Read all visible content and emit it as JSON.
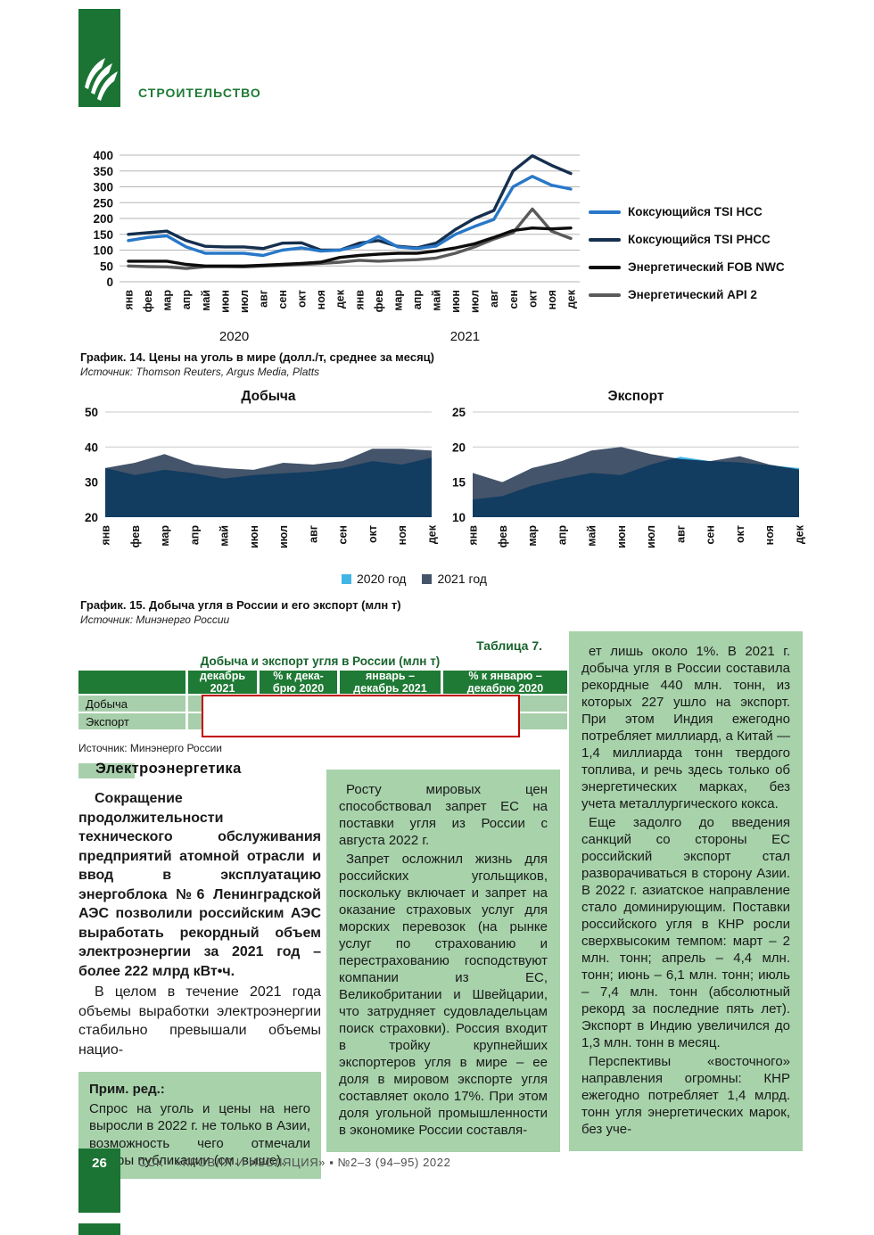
{
  "header": {
    "section_label": "СТРОИТЕЛЬСТВО"
  },
  "colors": {
    "brand_green": "#1B7434",
    "header_green": "#1E7A34",
    "light_green": "#A7D2AA",
    "redaction_red": "#C00000",
    "legend_2020_blue": "#41B6E6",
    "legend_2021_slate": "#44546A"
  },
  "chart14": {
    "caption": "График. 14. Цены на уголь в мире (долл./т, среднее за месяц)",
    "source": "Источник: Thomson Reuters, Argus Media, Platts"
  },
  "chart15": {
    "caption": "График. 15. Добыча угля в России и его экспорт (млн т)",
    "source": "Источник: Минэнерго России"
  },
  "chart_data": [
    {
      "id": "world-coal-prices",
      "type": "line",
      "title": "Цены на уголь в мире (долл./т, среднее за месяц)",
      "x_months": [
        "янв",
        "фев",
        "мар",
        "апр",
        "май",
        "июн",
        "июл",
        "авг",
        "сен",
        "окт",
        "ноя",
        "дек",
        "янв",
        "фев",
        "мар",
        "апр",
        "май",
        "июн",
        "июл",
        "авг",
        "сен",
        "окт",
        "ноя",
        "дек"
      ],
      "year_groups": [
        "2020",
        "2021"
      ],
      "ylim": [
        0,
        400
      ],
      "ytick_step": 50,
      "grid": true,
      "legend_position": "right",
      "series": [
        {
          "name": "Коксующийся TSI HCC",
          "color": "#2878C8",
          "values": [
            130,
            140,
            145,
            110,
            90,
            90,
            90,
            83,
            100,
            107,
            97,
            100,
            113,
            143,
            110,
            105,
            113,
            150,
            175,
            197,
            300,
            333,
            305,
            293
          ]
        },
        {
          "name": "Коксующийся TSI PHCC",
          "color": "#152F4E",
          "values": [
            150,
            155,
            160,
            130,
            112,
            110,
            110,
            105,
            122,
            123,
            100,
            100,
            122,
            130,
            112,
            107,
            122,
            165,
            200,
            225,
            350,
            398,
            368,
            342
          ]
        },
        {
          "name": "Энергетический FOB NWC",
          "color": "#0d0d0d",
          "values": [
            65,
            65,
            65,
            55,
            50,
            50,
            50,
            52,
            55,
            58,
            62,
            77,
            83,
            87,
            90,
            90,
            97,
            107,
            120,
            140,
            162,
            170,
            167,
            170
          ]
        },
        {
          "name": "Энергетический API 2",
          "color": "#5a5a5a",
          "values": [
            50,
            48,
            47,
            42,
            48,
            48,
            47,
            50,
            52,
            55,
            58,
            62,
            68,
            65,
            68,
            70,
            75,
            90,
            110,
            135,
            155,
            230,
            160,
            137
          ]
        }
      ]
    },
    {
      "id": "russia-coal-production",
      "type": "area",
      "title": "Добыча",
      "months": [
        "янв",
        "фев",
        "мар",
        "апр",
        "май",
        "июн",
        "июл",
        "авг",
        "сен",
        "окт",
        "ноя",
        "дек"
      ],
      "ylim": [
        20,
        50
      ],
      "yticks": [
        20,
        30,
        40,
        50
      ],
      "series": [
        {
          "name": "2020 год",
          "color": "#41B6E6",
          "values": [
            34,
            32,
            33.5,
            32.5,
            31,
            32,
            32.5,
            33,
            34,
            36,
            35,
            37
          ]
        },
        {
          "name": "2021 год",
          "color": "#44546A",
          "values": [
            34,
            35.5,
            38,
            35,
            34,
            33.5,
            35.5,
            35,
            36,
            39.5,
            39.5,
            39
          ]
        }
      ]
    },
    {
      "id": "russia-coal-export",
      "type": "area",
      "title": "Экспорт",
      "months": [
        "янв",
        "фев",
        "мар",
        "апр",
        "май",
        "июн",
        "июл",
        "авг",
        "сен",
        "окт",
        "ноя",
        "дек"
      ],
      "ylim": [
        10,
        25
      ],
      "yticks": [
        10,
        15,
        20,
        25
      ],
      "series": [
        {
          "name": "2020 год",
          "color": "#41B6E6",
          "values": [
            12.5,
            13,
            14.5,
            15.5,
            16.3,
            16,
            17.5,
            18.6,
            18,
            17.8,
            17.4,
            17
          ]
        },
        {
          "name": "2021 год",
          "color": "#44546A",
          "values": [
            16.3,
            15,
            17,
            18,
            19.5,
            20,
            19,
            18.3,
            18,
            18.7,
            17.5,
            16.8
          ]
        }
      ]
    }
  ],
  "table7": {
    "label": "Таблица 7.",
    "title": "Добыча и экспорт угля в России (млн т)",
    "columns": [
      "",
      "декабрь 2021",
      "% к дека-брю 2020",
      "январь – декабрь 2021",
      "% к январю – декабрю 2020"
    ],
    "rows": [
      {
        "label": "Добыча"
      },
      {
        "label": "Экспорт"
      }
    ],
    "source": "Источник: Минэнерго России"
  },
  "left_column": {
    "section_title": "Электроэнергетика",
    "p1": "Сокращение продолжительности технического обслуживания предприятий атомной отрасли и ввод в эксплуатацию энергоблока №6 Ленинградской АЭС позволили российским АЭС выработать рекордный объем электроэнергии за 2021 год – более 222 млрд кВт•ч.",
    "p2": "В целом в течение 2021 года объемы выработки электроэнергии стабильно превышали объемы нацио-",
    "note": {
      "title": "Прим. ред.:",
      "body": "Спрос на уголь и цены на него выросли в 2022 г. не только в Азии, возможность чего отмечали авторы публикации (см. выше)."
    }
  },
  "middle_column": {
    "p1": "Росту мировых цен способствовал запрет ЕС на поставки угля из России с августа 2022 г.",
    "p2": "Запрет осложнил жизнь для российских угольщиков, поскольку включает и запрет на оказание страховых услуг для морских перевозок (на рынке услуг по страхованию и перестрахованию господствуют компании из ЕС, Великобритании и Швейцарии, что затрудняет судовладельцам поиск страховки). Россия входит в тройку крупнейших экспортеров угля в мире – ее доля в мировом экспорте угля составляет около 17%. При этом доля угольной промышленности в экономике России составля-"
  },
  "right_column": {
    "p1": "ет лишь около 1%. В 2021 г. добыча угля в России составила рекордные 440 млн. тонн, из которых 227 ушло на экспорт. При этом Индия ежегодно потребляет миллиард, а Китай — 1,4 миллиарда тонн твердого топлива, и речь здесь только об энергетических марках, без учета металлургического кокса.",
    "p2": "Еще задолго до введения санкций со стороны ЕС российский экспорт стал разворачиваться в сторону Азии. В 2022 г. азиатское направление стало доминирующим. Поставки российского угля в КНР росли сверхвысоким темпом: март – 2 млн. тонн; апрель – 4,4 млн. тонн; июнь – 6,1 млн. тонн; июль – 7,4 млн. тонн (абсолютный рекорд за последние пять лет). Экспорт в Индию увеличился до 1,3 млн. тонн в месяц.",
    "p3": "Перспективы «восточного» направления огромны: КНР ежегодно потребляет 1,4 млрд. тонн угля энергетических марок, без уче-"
  },
  "footer": {
    "page_number": "26",
    "journal_line": "ССК ▪ «КРОВЛЯ И ИЗОЛЯЦИЯ» ▪ №2–3 (94–95) 2022"
  }
}
